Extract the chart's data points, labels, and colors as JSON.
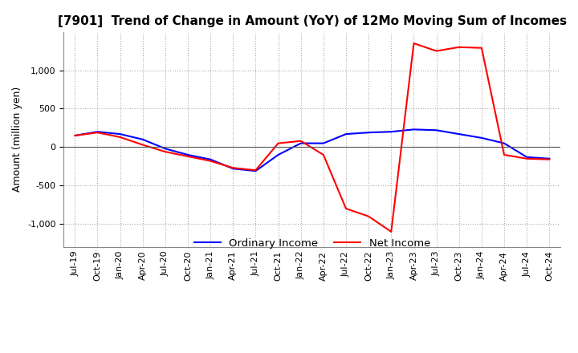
{
  "title": "[7901]  Trend of Change in Amount (YoY) of 12Mo Moving Sum of Incomes",
  "ylabel": "Amount (million yen)",
  "x_labels": [
    "Jul-19",
    "Oct-19",
    "Jan-20",
    "Apr-20",
    "Jul-20",
    "Oct-20",
    "Jan-21",
    "Apr-21",
    "Jul-21",
    "Oct-21",
    "Jan-22",
    "Apr-22",
    "Jul-22",
    "Oct-22",
    "Jan-23",
    "Apr-23",
    "Jul-23",
    "Oct-23",
    "Jan-24",
    "Apr-24",
    "Jul-24",
    "Oct-24"
  ],
  "ordinary_income": [
    150,
    200,
    170,
    100,
    -20,
    -100,
    -160,
    -280,
    -310,
    -100,
    50,
    50,
    170,
    190,
    200,
    230,
    220,
    170,
    120,
    50,
    -130,
    -150
  ],
  "net_income": [
    150,
    190,
    130,
    30,
    -60,
    -120,
    -180,
    -270,
    -300,
    50,
    80,
    -100,
    -800,
    -900,
    -1100,
    1350,
    1250,
    1300,
    1290,
    -100,
    -150,
    -160
  ],
  "ylim": [
    -1300,
    1500
  ],
  "yticks": [
    -1000,
    -500,
    0,
    500,
    1000
  ],
  "ordinary_color": "#0000ff",
  "net_color": "#ff0000",
  "grid_color": "#aaaaaa",
  "background_color": "#ffffff",
  "title_fontsize": 11,
  "label_fontsize": 9,
  "tick_fontsize": 8
}
